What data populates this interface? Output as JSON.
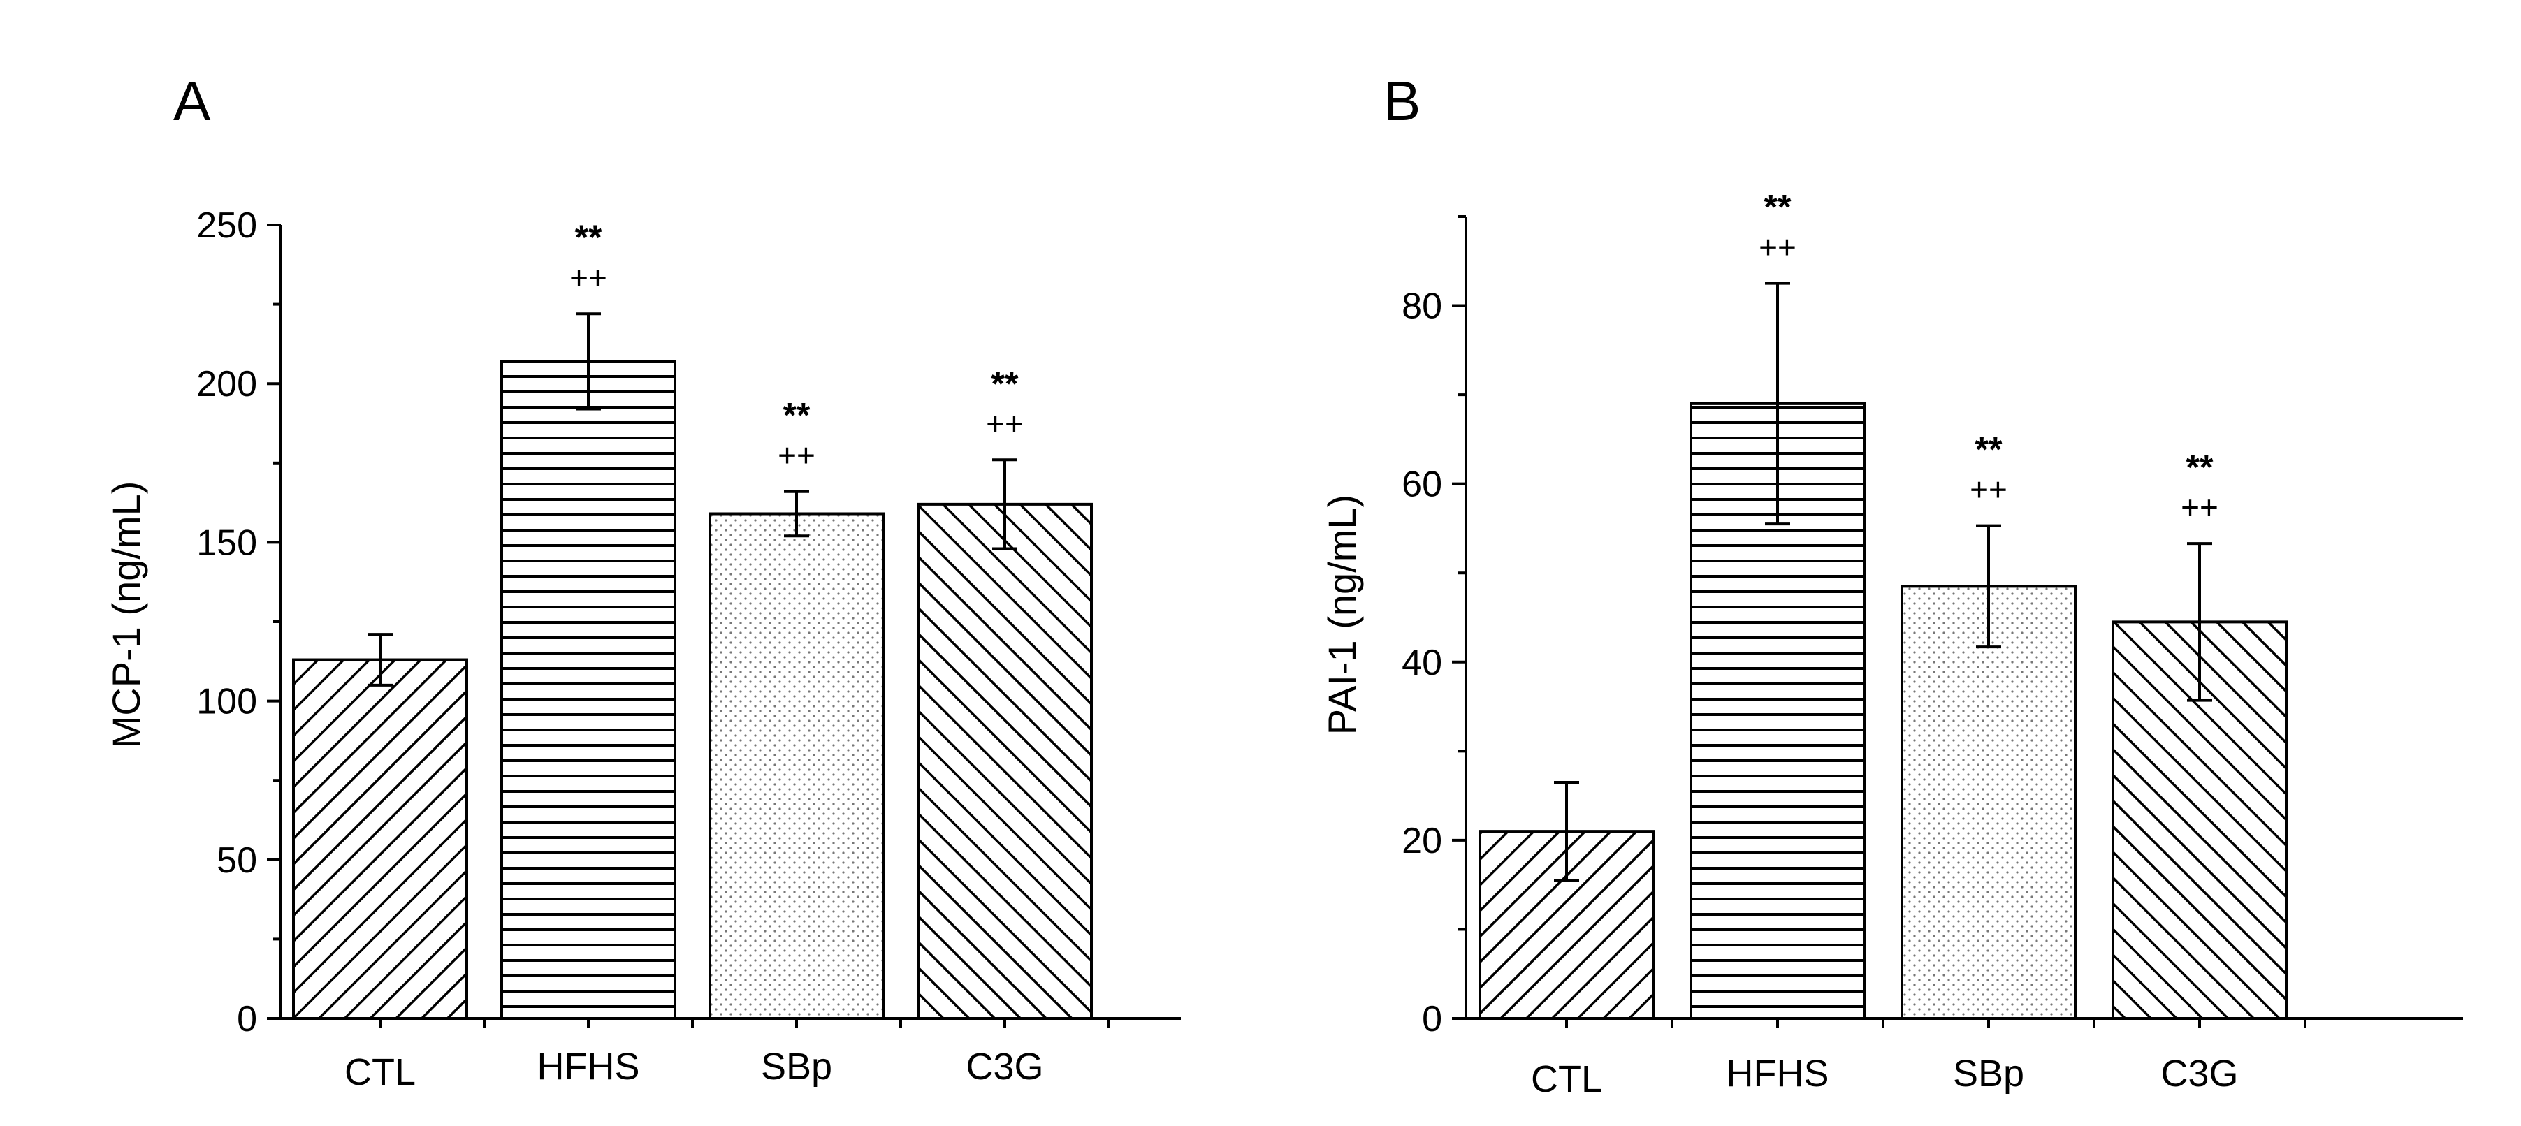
{
  "chart_data": [
    {
      "panel": "A",
      "type": "bar",
      "title": "",
      "xlabel": "",
      "ylabel": "MCP-1 (ng/mL)",
      "ylim": [
        0,
        250
      ],
      "yticks": [
        0,
        50,
        100,
        150,
        200,
        250
      ],
      "categories": [
        "CTL",
        "HFHS",
        "SBp",
        "C3G"
      ],
      "values": [
        113,
        207,
        159,
        162
      ],
      "errors": [
        8,
        15,
        7,
        14
      ],
      "patterns": [
        "diag-right",
        "horizontal",
        "dots",
        "diag-left"
      ],
      "annotations": [
        {
          "line1": "",
          "line2": ""
        },
        {
          "line1": "**",
          "line2": "++"
        },
        {
          "line1": "**",
          "line2": "++"
        },
        {
          "line1": "**",
          "line2": "++"
        }
      ]
    },
    {
      "panel": "B",
      "type": "bar",
      "title": "",
      "xlabel": "",
      "ylabel": "PAI-1 (ng/mL)",
      "ylim": [
        0,
        90
      ],
      "yticks": [
        0,
        20,
        40,
        60,
        80
      ],
      "categories": [
        "CTL",
        "HFHS",
        "SBp",
        "C3G"
      ],
      "values": [
        21,
        69,
        48.5,
        44.5
      ],
      "errors": [
        5.5,
        13.5,
        6.8,
        8.8
      ],
      "patterns": [
        "diag-right",
        "horizontal",
        "dots",
        "diag-left"
      ],
      "annotations": [
        {
          "line1": "",
          "line2": ""
        },
        {
          "line1": "**",
          "line2": "++"
        },
        {
          "line1": "**",
          "line2": "++"
        },
        {
          "line1": "**",
          "line2": "++"
        }
      ]
    }
  ]
}
